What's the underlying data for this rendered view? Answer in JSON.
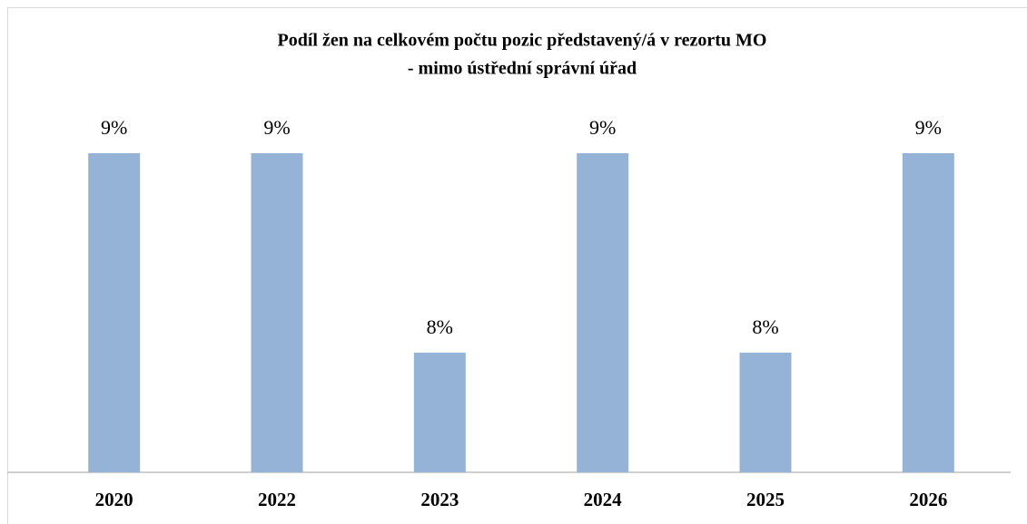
{
  "chart_data": {
    "type": "bar",
    "title": [
      "Podíl žen na celkovém počtu pozic představený/á v rezortu MO",
      "- mimo ústřední  správní úřad"
    ],
    "categories": [
      "2020",
      "2022",
      "2023",
      "2024",
      "2025",
      "2026"
    ],
    "values": [
      9,
      9,
      8,
      9,
      8,
      9
    ],
    "value_labels": [
      "9%",
      "9%",
      "8%",
      "9%",
      "8%",
      "9%"
    ],
    "color": "#95b3d7",
    "ylim": [
      7.4,
      9.6
    ]
  }
}
